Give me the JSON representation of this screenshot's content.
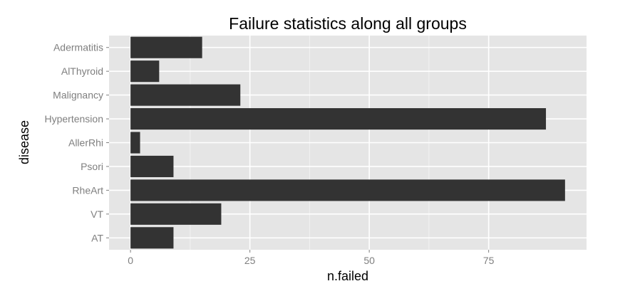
{
  "chart_data": {
    "type": "bar",
    "orientation": "horizontal",
    "title": "Failure statistics along all groups",
    "xlabel": "n.failed",
    "ylabel": "disease",
    "categories": [
      "AT",
      "VT",
      "RheArt",
      "Psori",
      "AllerRhi",
      "Hypertension",
      "Malignancy",
      "AlThyroid",
      "Adermatitis"
    ],
    "values": [
      9,
      19,
      91,
      9,
      2,
      87,
      23,
      6,
      15
    ],
    "xlim": [
      -4.5,
      95.5
    ],
    "xticks": [
      0,
      25,
      50,
      75
    ],
    "xtick_labels": [
      "0",
      "25",
      "50",
      "75"
    ],
    "grid": true,
    "colors": {
      "panel": "#e5e5e5",
      "grid_major": "#ffffff",
      "grid_minor": "#f2f2f2",
      "bar": "#333333",
      "tick": "#7f7f7f"
    }
  }
}
